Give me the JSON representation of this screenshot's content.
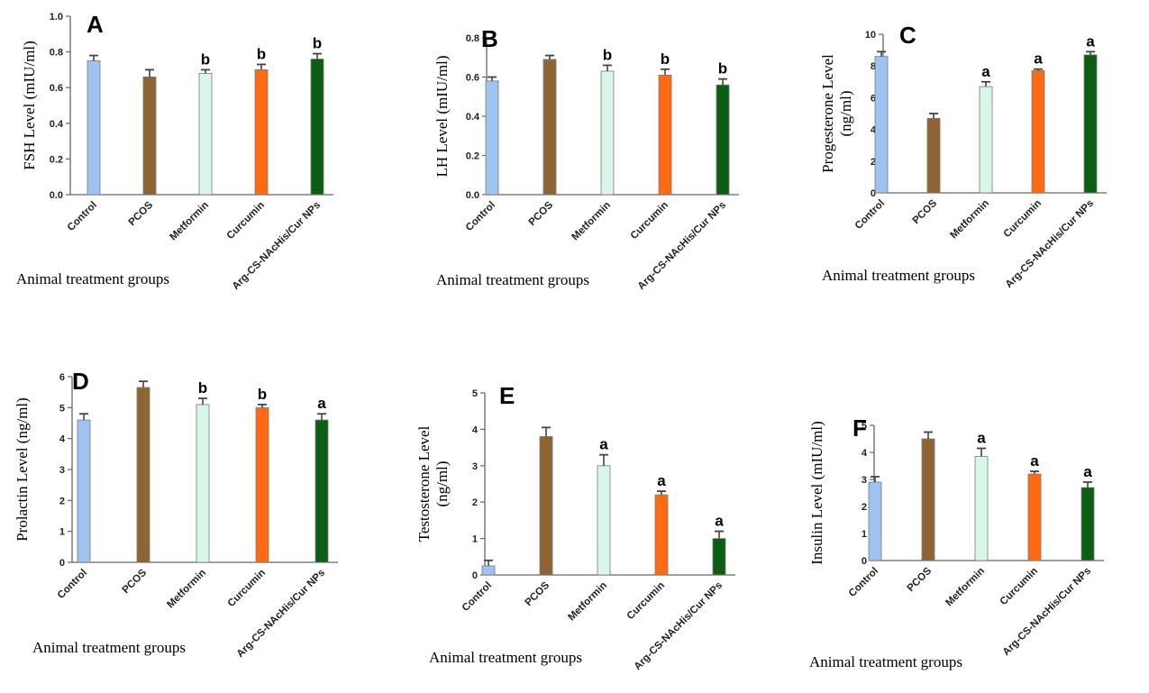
{
  "figure": {
    "xlabel": "Animal treatment groups"
  },
  "colors": {
    "control": "#9ec3f0",
    "pcos": "#8e6532",
    "metformin": "#d9f7e8",
    "curcumin": "#ff6a13",
    "nanoparticles": "#0b5e14"
  },
  "chart_data": [
    {
      "type": "bar",
      "letter": "A",
      "ylabel": "FSH Level (mIU/ml)",
      "xlabel": "Animal treatment groups",
      "categories": [
        "Control",
        "PCOS",
        "Metformin",
        "Curcumin",
        "Arg-CS-NAcHis/Cur NPs"
      ],
      "values": [
        0.75,
        0.66,
        0.68,
        0.7,
        0.76
      ],
      "errors": [
        0.03,
        0.04,
        0.02,
        0.03,
        0.03
      ],
      "sig": [
        "",
        "",
        "b",
        "b",
        "b"
      ],
      "ylim": [
        0,
        1.0
      ],
      "yticks": [
        "0.0",
        "0.2",
        "0.4",
        "0.6",
        "0.8",
        "1.0"
      ]
    },
    {
      "type": "bar",
      "letter": "B",
      "ylabel": "LH Level (mIU/ml)",
      "xlabel": "Animal treatment groups",
      "categories": [
        "Control",
        "PCOS",
        "Metformin",
        "Curcumin",
        "Arg-CS-NAcHis/Cur NPs"
      ],
      "values": [
        0.58,
        0.69,
        0.63,
        0.61,
        0.56
      ],
      "errors": [
        0.02,
        0.02,
        0.03,
        0.03,
        0.03
      ],
      "sig": [
        "",
        "",
        "b",
        "b",
        "b"
      ],
      "ylim": [
        0,
        0.8
      ],
      "yticks": [
        "0.0",
        "0.2",
        "0.4",
        "0.6",
        "0.8"
      ]
    },
    {
      "type": "bar",
      "letter": "C",
      "ylabel": "Progesterone Level",
      "ylabel2": "(ng/ml)",
      "xlabel": "Animal treatment groups",
      "categories": [
        "Control",
        "PCOS",
        "Metformin",
        "Curcumin",
        "Arg-CS-NAcHis/Cur NPs"
      ],
      "values": [
        8.6,
        4.7,
        6.7,
        7.7,
        8.7
      ],
      "errors": [
        0.3,
        0.3,
        0.3,
        0.1,
        0.2
      ],
      "sig": [
        "",
        "",
        "a",
        "a",
        "a"
      ],
      "ylim": [
        0,
        10
      ],
      "yticks": [
        "0",
        "2",
        "4",
        "6",
        "8",
        "10"
      ]
    },
    {
      "type": "bar",
      "letter": "D",
      "ylabel": "Prolactin Level (ng/ml)",
      "xlabel": "Animal treatment groups",
      "categories": [
        "Control",
        "PCOS",
        "Metformin",
        "Curcumin",
        "Arg-CS-NAcHis/Cur NPs"
      ],
      "values": [
        4.6,
        5.65,
        5.1,
        5.0,
        4.6
      ],
      "errors": [
        0.2,
        0.2,
        0.2,
        0.1,
        0.2
      ],
      "sig": [
        "",
        "",
        "b",
        "b",
        "a"
      ],
      "ylim": [
        0,
        6
      ],
      "yticks": [
        "0",
        "1",
        "2",
        "3",
        "4",
        "5",
        "6"
      ]
    },
    {
      "type": "bar",
      "letter": "E",
      "ylabel": "Testosterone Level",
      "ylabel2": "(ng/ml)",
      "xlabel": "Animal treatment groups",
      "categories": [
        "Control",
        "PCOS",
        "Metformin",
        "Curcumin",
        "Arg-CS-NAcHis/Cur NPs"
      ],
      "values": [
        0.25,
        3.8,
        3.0,
        2.2,
        1.0
      ],
      "errors": [
        0.15,
        0.25,
        0.3,
        0.1,
        0.2
      ],
      "sig": [
        "",
        "",
        "a",
        "a",
        "a"
      ],
      "ylim": [
        0,
        5
      ],
      "yticks": [
        "0",
        "1",
        "2",
        "3",
        "4",
        "5"
      ]
    },
    {
      "type": "bar",
      "letter": "F",
      "ylabel": "Insulin Level (mIU/ml)",
      "xlabel": "Animal treatment groups",
      "categories": [
        "Control",
        "PCOS",
        "Metformin",
        "Curcumin",
        "Arg-CS-NAcHis/Cur NPs"
      ],
      "values": [
        2.9,
        4.5,
        3.85,
        3.2,
        2.7
      ],
      "errors": [
        0.2,
        0.25,
        0.3,
        0.1,
        0.2
      ],
      "sig": [
        "",
        "",
        "a",
        "a",
        "a"
      ],
      "ylim": [
        0,
        5
      ],
      "yticks": [
        "0",
        "1",
        "2",
        "3",
        "4",
        "5"
      ]
    }
  ]
}
